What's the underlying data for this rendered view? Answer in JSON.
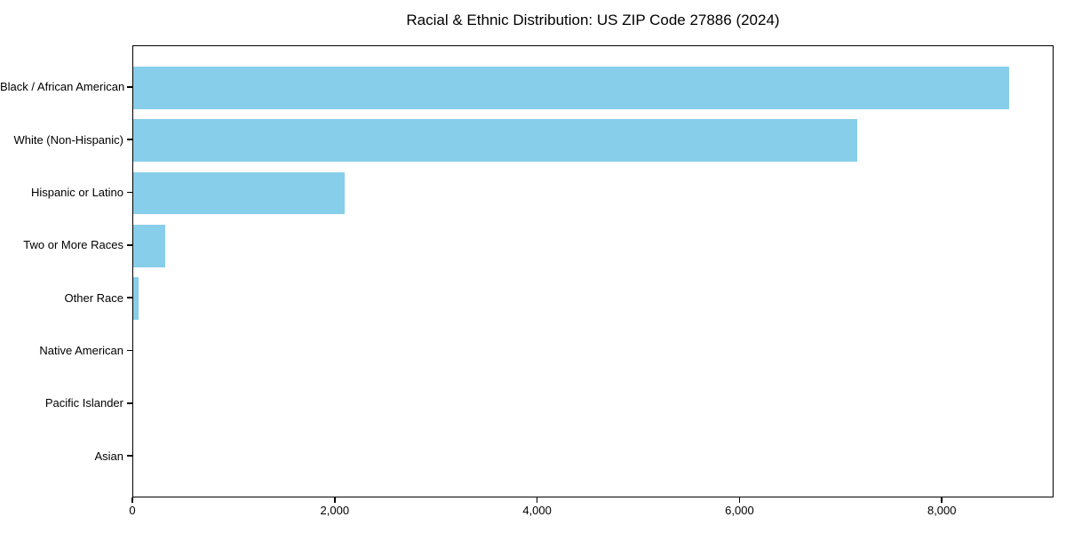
{
  "figure": {
    "background": "#ffffff",
    "text_color": "#000000"
  },
  "chart_data": {
    "type": "bar",
    "orientation": "horizontal",
    "title": "Racial & Ethnic Distribution: US ZIP Code 27886 (2024)",
    "categories": [
      "Black / African American",
      "White (Non-Hispanic)",
      "Hispanic or Latino",
      "Two or More Races",
      "Other Race",
      "Native American",
      "Pacific Islander",
      "Asian"
    ],
    "values": [
      8670,
      7170,
      2090,
      320,
      50,
      0,
      0,
      0
    ],
    "xlabel": "",
    "ylabel": "",
    "xlim": [
      0,
      9104
    ],
    "x_ticks": [
      {
        "value": 0,
        "label": "0"
      },
      {
        "value": 2000,
        "label": "2,000"
      },
      {
        "value": 4000,
        "label": "4,000"
      },
      {
        "value": 6000,
        "label": "6,000"
      },
      {
        "value": 8000,
        "label": "8,000"
      }
    ],
    "bar_color": "#87CEEB",
    "axis_color": "#000000",
    "grid": false,
    "legend": "none"
  }
}
